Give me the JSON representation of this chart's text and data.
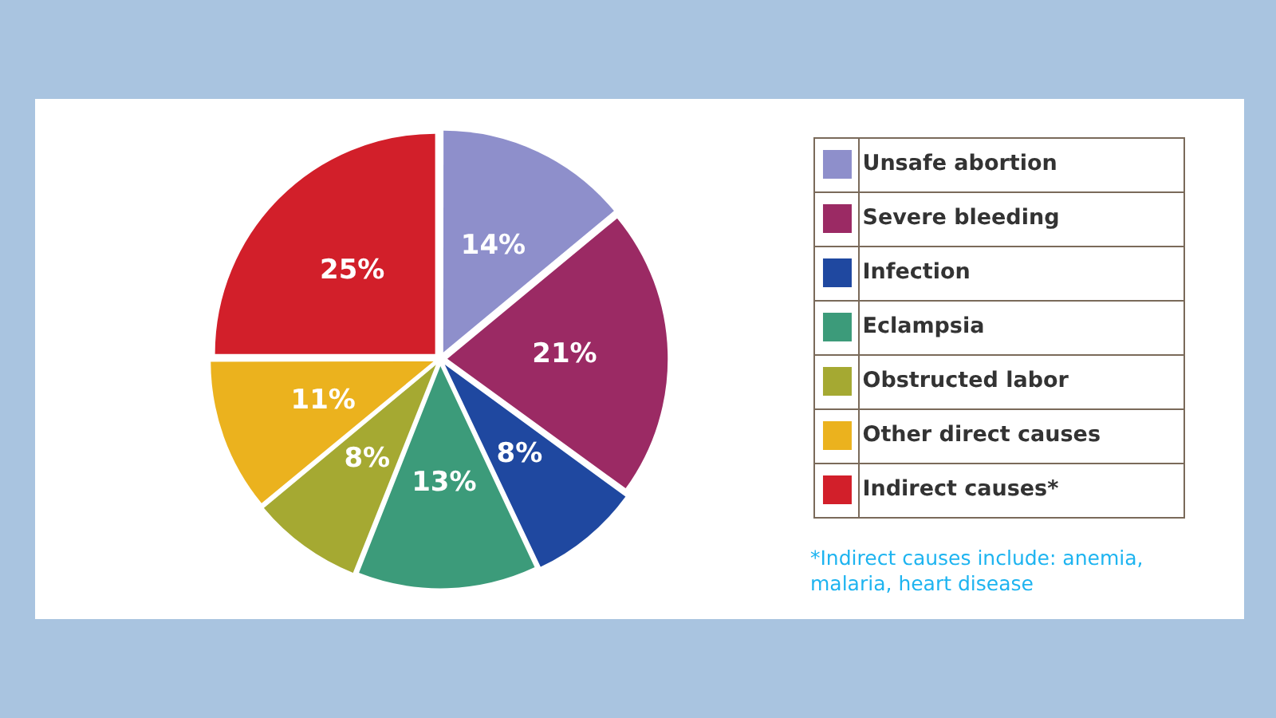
{
  "chart_data": {
    "type": "pie",
    "categories": [
      "Unsafe abortion",
      "Severe bleeding",
      "Infection",
      "Eclampsia",
      "Obstructed labor",
      "Other direct causes",
      "Indirect causes*"
    ],
    "values": [
      14,
      21,
      8,
      13,
      8,
      11,
      25
    ],
    "colors": [
      "#8e8fcb",
      "#9b2a64",
      "#1f48a0",
      "#3c9b7a",
      "#a5a932",
      "#ebb21e",
      "#d21f2a"
    ],
    "value_labels": [
      "14%",
      "21%",
      "8%",
      "13%",
      "8%",
      "11%",
      "25%"
    ],
    "legend": "right",
    "annotations": [
      "*Indirect causes include: anemia, malaria, heart disease"
    ]
  }
}
